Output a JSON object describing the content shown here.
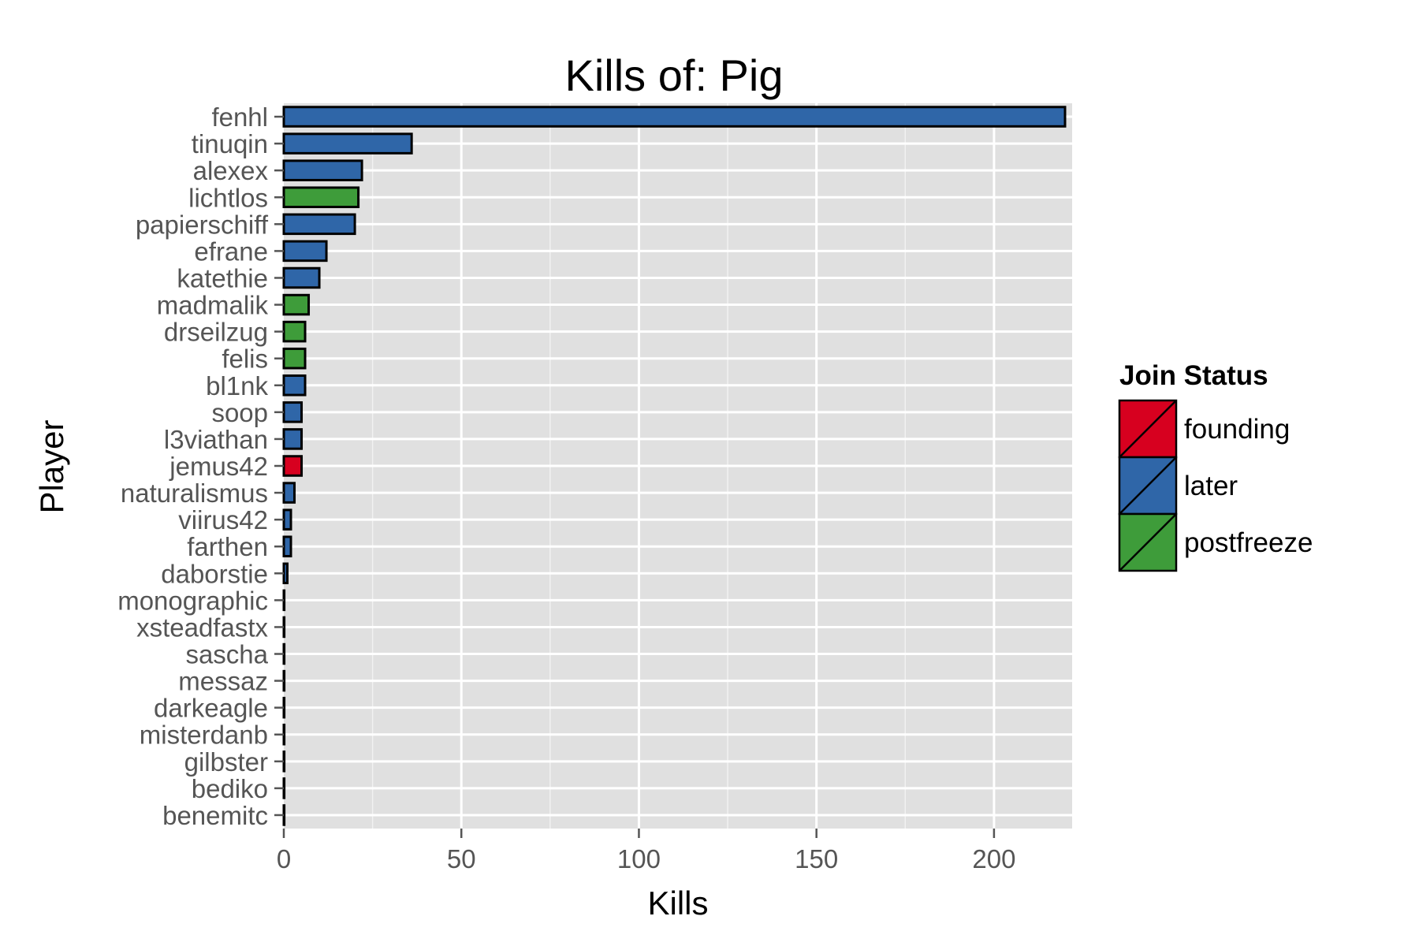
{
  "chart_data": {
    "type": "bar",
    "orientation": "horizontal",
    "title": "Kills of: Pig",
    "xlabel": "Kills",
    "ylabel": "Player",
    "xlim": [
      0,
      222
    ],
    "xticks": [
      0,
      50,
      100,
      150,
      200
    ],
    "grid": true,
    "legend": {
      "title": "Join Status",
      "position": "right",
      "entries": [
        {
          "label": "founding",
          "color": "#d7001f"
        },
        {
          "label": "later",
          "color": "#2f66a8"
        },
        {
          "label": "postfreeze",
          "color": "#3e9c3a"
        }
      ]
    },
    "categories": [
      "fenhl",
      "tinuqin",
      "alexex",
      "lichtlos",
      "papierschiff",
      "efrane",
      "katethie",
      "madmalik",
      "drseilzug",
      "felis",
      "bl1nk",
      "soop",
      "l3viathan",
      "jemus42",
      "naturalismus",
      "viirus42",
      "farthen",
      "daborstie",
      "monographic",
      "xsteadfastx",
      "sascha",
      "messaz",
      "darkeagle",
      "misterdanb",
      "gilbster",
      "bediko",
      "benemitc"
    ],
    "values": [
      220,
      36,
      22,
      21,
      20,
      12,
      10,
      7,
      6,
      6,
      6,
      5,
      5,
      5,
      3,
      2,
      2,
      1,
      0,
      0,
      0,
      0,
      0,
      0,
      0,
      0,
      0
    ],
    "status": [
      "later",
      "later",
      "later",
      "postfreeze",
      "later",
      "later",
      "later",
      "postfreeze",
      "postfreeze",
      "postfreeze",
      "later",
      "later",
      "later",
      "founding",
      "later",
      "later",
      "later",
      "later",
      "later",
      "later",
      "later",
      "later",
      "later",
      "later",
      "later",
      "later",
      "later"
    ]
  }
}
